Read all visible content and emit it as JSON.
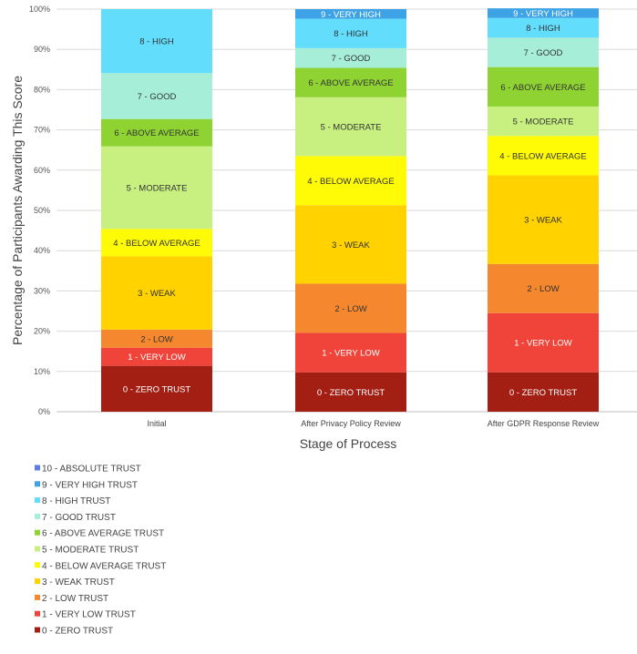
{
  "chart_data": {
    "type": "bar",
    "stacked": true,
    "title": "",
    "xlabel": "Stage of Process",
    "ylabel": "Percentage of Participants Awarding This Score",
    "ylim": [
      0,
      100
    ],
    "yticks": [
      "0%",
      "10%",
      "20%",
      "30%",
      "40%",
      "50%",
      "60%",
      "70%",
      "80%",
      "90%",
      "100%"
    ],
    "grid": true,
    "legend_position": "bottom-left",
    "categories": [
      "Initial",
      "After Privacy Policy Review",
      "After GDPR Response Review"
    ],
    "series": [
      {
        "name": "0 - ZERO TRUST",
        "label": "0 - ZERO TRUST",
        "color": "#A31F14",
        "values": [
          11.4,
          9.8,
          9.8
        ]
      },
      {
        "name": "1 - VERY LOW TRUST",
        "label": "1 - VERY LOW",
        "color": "#F0443A",
        "values": [
          4.5,
          9.8,
          14.7
        ]
      },
      {
        "name": "2 - LOW TRUST",
        "label": "2 - LOW",
        "color": "#F5872E",
        "values": [
          4.5,
          12.2,
          12.2
        ]
      },
      {
        "name": "3 - WEAK TRUST",
        "label": "3 - WEAK",
        "color": "#FFD200",
        "values": [
          18.2,
          19.5,
          22.0
        ]
      },
      {
        "name": "4 - BELOW AVERAGE TRUST",
        "label": "4 - BELOW AVERAGE",
        "color": "#FFFA06",
        "values": [
          6.8,
          12.2,
          9.8
        ]
      },
      {
        "name": "5 - MODERATE TRUST",
        "label": "5 - MODERATE",
        "color": "#C8F080",
        "values": [
          20.5,
          14.6,
          7.3
        ]
      },
      {
        "name": "6 - ABOVE AVERAGE TRUST",
        "label": "6 - ABOVE AVERAGE",
        "color": "#8FD332",
        "values": [
          6.8,
          7.3,
          9.8
        ]
      },
      {
        "name": "7 - GOOD TRUST",
        "label": "7 - GOOD",
        "color": "#A6EED8",
        "values": [
          11.4,
          4.9,
          7.3
        ]
      },
      {
        "name": "8 - HIGH TRUST",
        "label": "8 - HIGH",
        "color": "#62DDFB",
        "values": [
          15.9,
          7.3,
          4.9
        ]
      },
      {
        "name": "9 - VERY HIGH TRUST",
        "label": "9 - VERY HIGH",
        "color": "#3DA3E6",
        "values": [
          0,
          2.4,
          2.4
        ]
      },
      {
        "name": "10 - ABSOLUTE TRUST",
        "label": "10 - ABSOLUTE",
        "color": "#5C7CE6",
        "values": [
          0,
          0,
          0
        ]
      }
    ]
  }
}
